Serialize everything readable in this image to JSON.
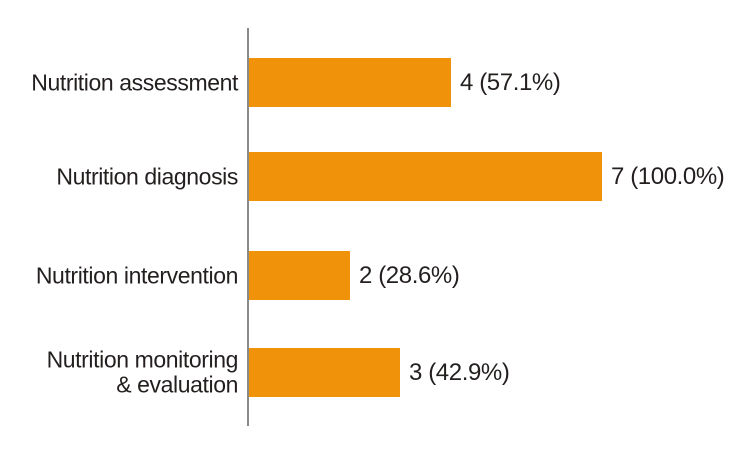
{
  "chart_data": {
    "type": "bar",
    "orientation": "horizontal",
    "title": "",
    "xlabel": "",
    "ylabel": "",
    "xlim_pct": [
      0,
      100
    ],
    "grid": false,
    "legend": false,
    "colors": {
      "bar": "#F0920A",
      "axis": "#8A8A8A",
      "text": "#231F1E"
    },
    "categories": [
      "Nutrition assessment",
      "Nutrition diagnosis",
      "Nutrition intervention",
      "Nutrition monitoring\n& evaluation"
    ],
    "values": [
      4,
      7,
      2,
      3
    ],
    "percents": [
      57.1,
      100.0,
      28.6,
      42.9
    ],
    "items": [
      {
        "label": "Nutrition assessment",
        "count": 4,
        "pct": 57.1,
        "display": "4 (57.1%)"
      },
      {
        "label": "Nutrition diagnosis",
        "count": 7,
        "pct": 100.0,
        "display": "7 (100.0%)"
      },
      {
        "label": "Nutrition intervention",
        "count": 2,
        "pct": 28.6,
        "display": "2 (28.6%)"
      },
      {
        "label": "Nutrition monitoring\n& evaluation",
        "count": 3,
        "pct": 42.9,
        "display": "3 (42.9%)"
      }
    ]
  }
}
